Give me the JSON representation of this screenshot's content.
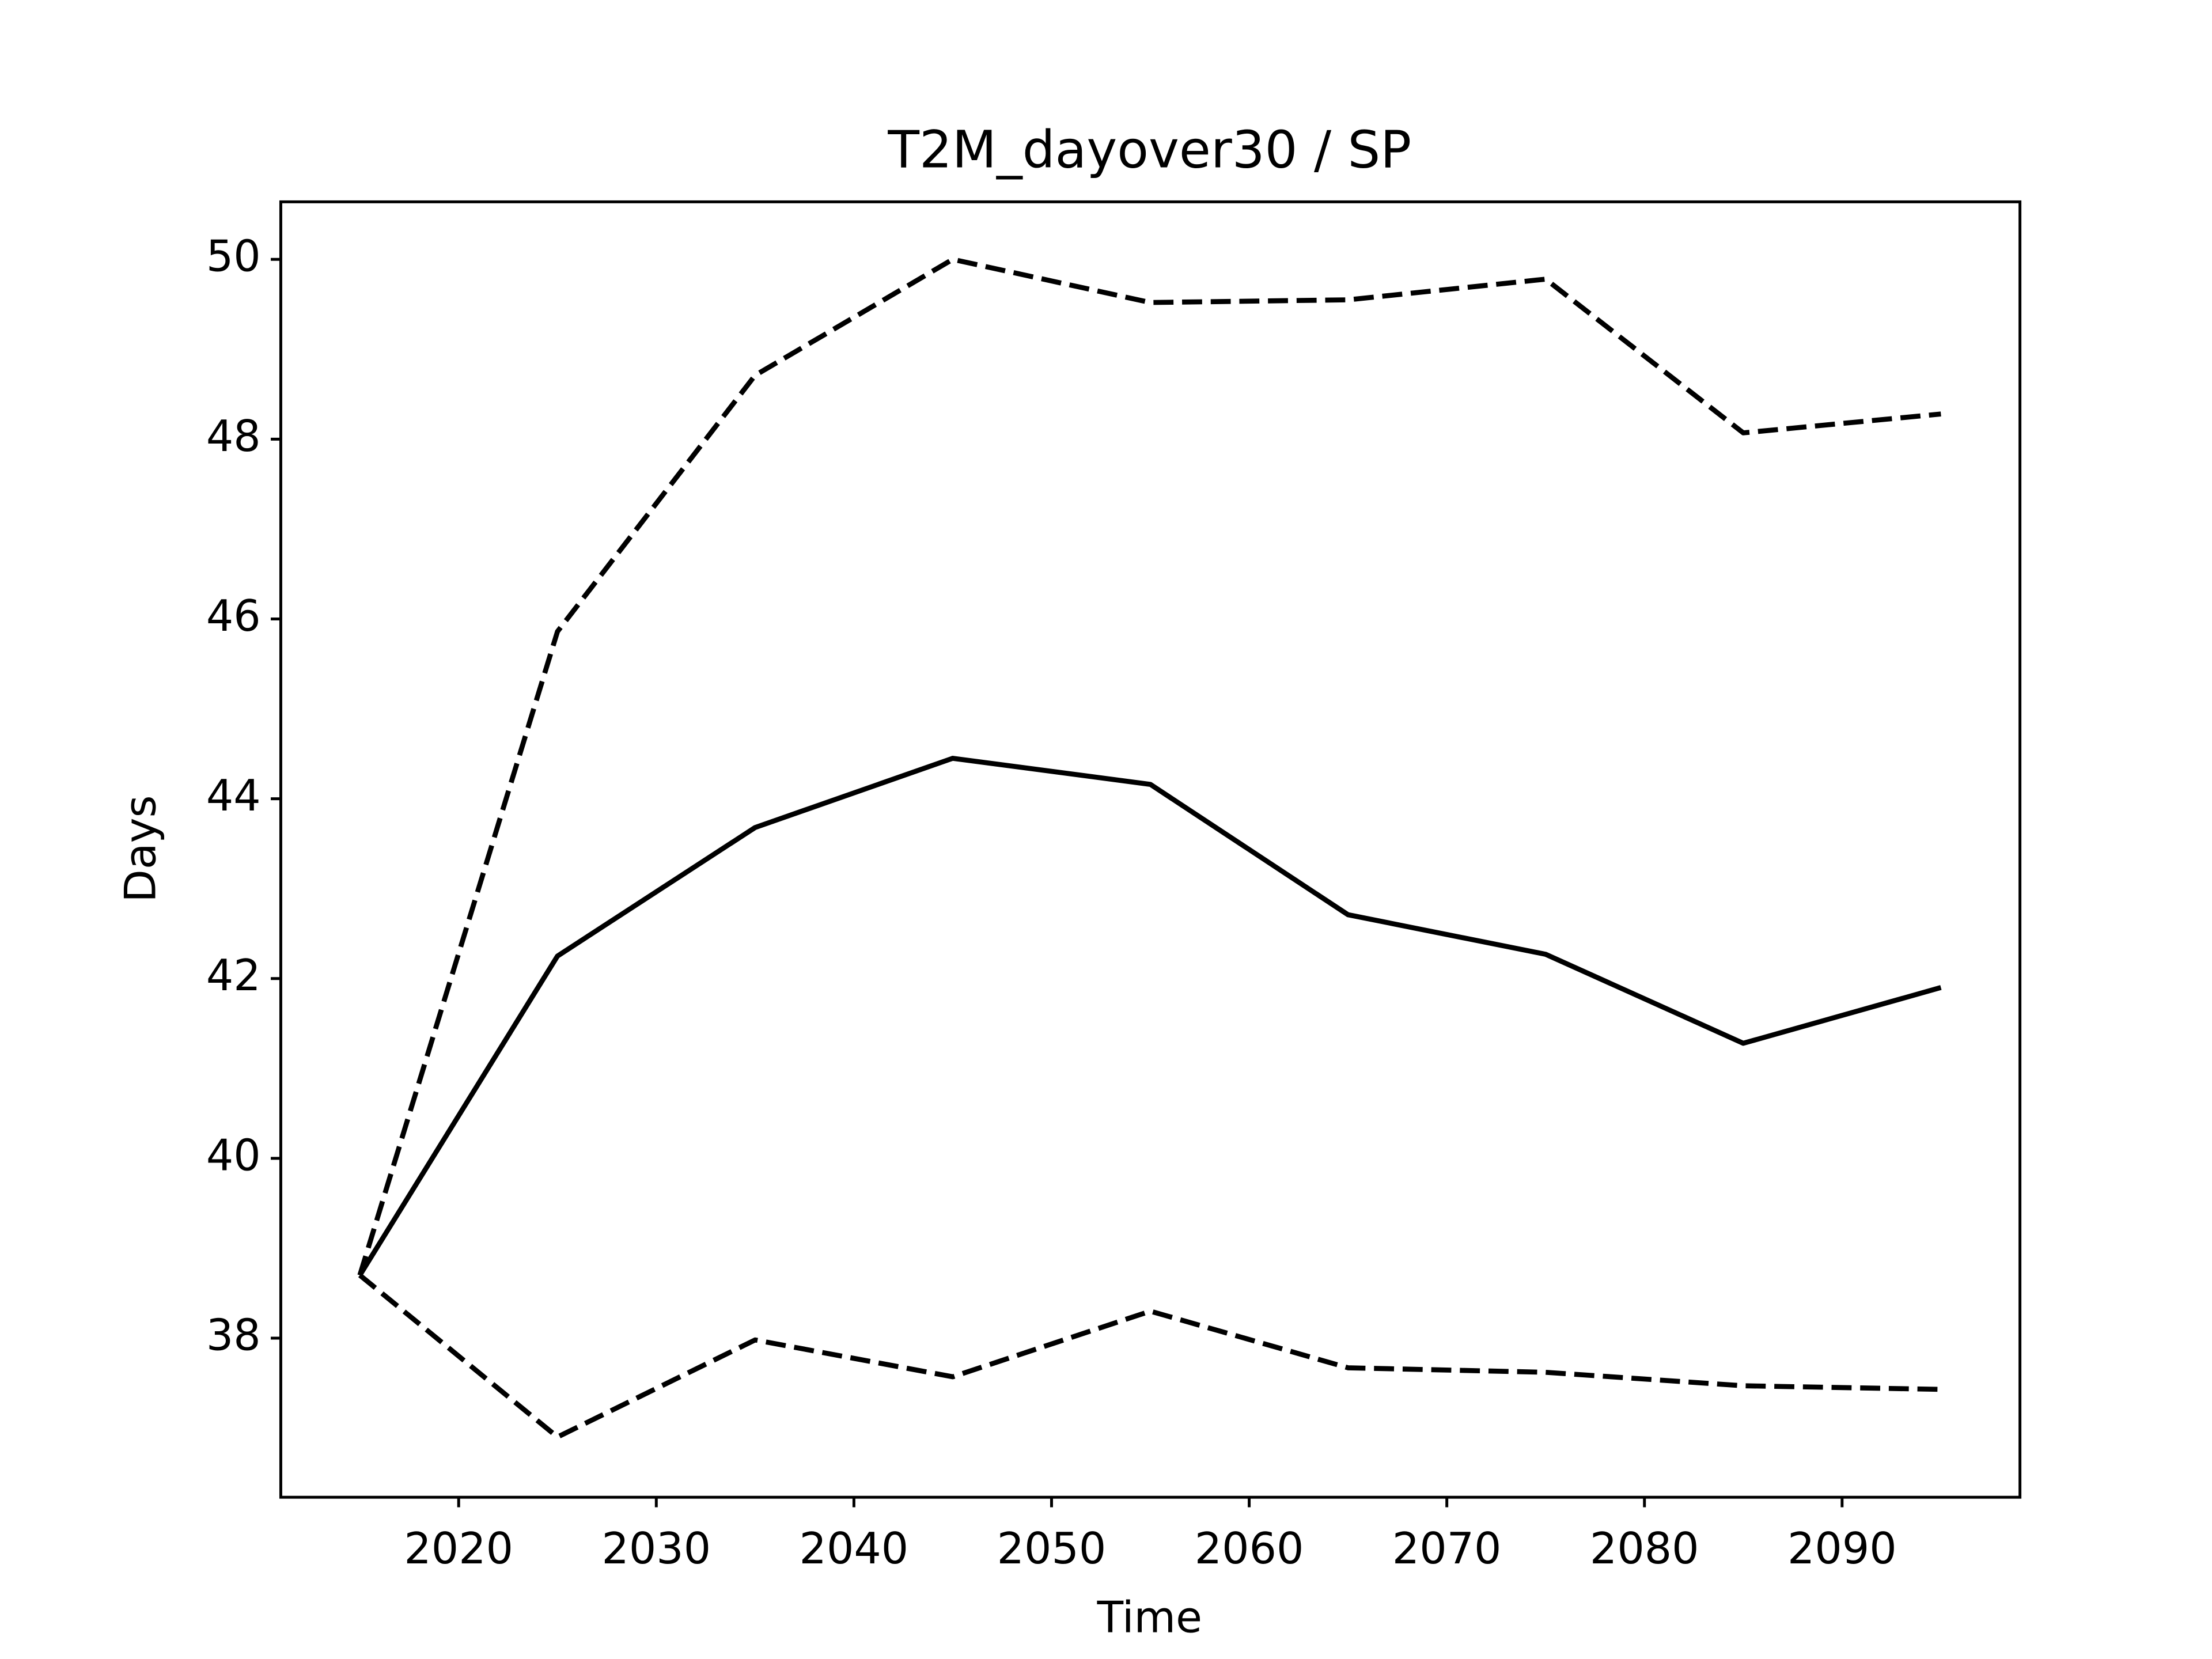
{
  "chart_data": {
    "type": "line",
    "title": "T2M_dayover30 / SP",
    "xlabel": "Time",
    "ylabel": "Days",
    "x": [
      2015,
      2025,
      2035,
      2045,
      2055,
      2065,
      2075,
      2085,
      2095
    ],
    "series": [
      {
        "color": "#000000",
        "dashed": false,
        "values": [
          38.7,
          42.25,
          43.68,
          44.45,
          44.16,
          42.71,
          42.27,
          41.28,
          41.9
        ]
      },
      {
        "color": "#000000",
        "dashed": true,
        "values": [
          38.7,
          45.86,
          48.71,
          50.0,
          49.52,
          49.55,
          49.78,
          48.07,
          48.28
        ]
      },
      {
        "color": "#000000",
        "dashed": true,
        "values": [
          38.7,
          36.9,
          37.98,
          37.57,
          38.3,
          37.67,
          37.62,
          37.47,
          37.43
        ]
      }
    ],
    "xlim": [
      2011,
      2099
    ],
    "xticks": [
      2020,
      2030,
      2040,
      2050,
      2060,
      2070,
      2080,
      2090
    ],
    "ylim": [
      36.23,
      50.64
    ],
    "yticks": [
      38,
      40,
      42,
      44,
      46,
      48,
      50
    ],
    "grid": false
  }
}
